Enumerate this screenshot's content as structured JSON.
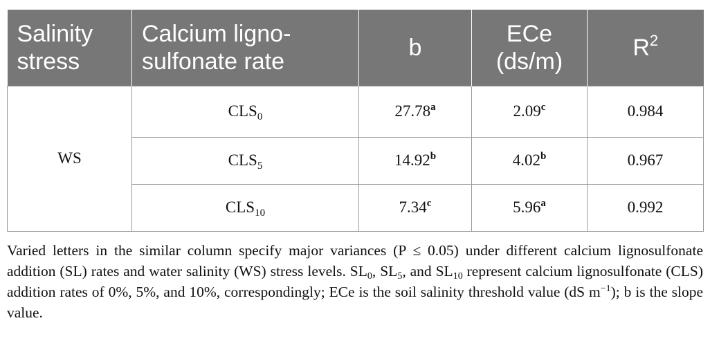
{
  "table": {
    "headers": {
      "col1": [
        "Salinity",
        "stress"
      ],
      "col2": [
        "Calcium ligno-",
        "sulfonate rate"
      ],
      "col3": "b",
      "col4": [
        "ECe",
        "(ds/m)"
      ],
      "col5_base": "R",
      "col5_sup": "2"
    },
    "group_label": "WS",
    "rows": [
      {
        "rate_base": "CLS",
        "rate_sub": "0",
        "b_value": "27.78",
        "b_letter": "a",
        "ece_value": "2.09",
        "ece_letter": "c",
        "r2": "0.984"
      },
      {
        "rate_base": "CLS",
        "rate_sub": "5",
        "b_value": "14.92",
        "b_letter": "b",
        "ece_value": "4.02",
        "ece_letter": "b",
        "r2": "0.967"
      },
      {
        "rate_base": "CLS",
        "rate_sub": "10",
        "b_value": "7.34",
        "b_letter": "c",
        "ece_value": "5.96",
        "ece_letter": "a",
        "r2": "0.992"
      }
    ],
    "colors": {
      "header_bg": "#777777",
      "header_text": "#ffffff",
      "border": "#999999"
    }
  },
  "footnote": {
    "part1": "Varied letters in the similar column specify major variances (P ≤ 0.05) under different calcium lignosulfonate addition (SL) rates and water salinity (WS) stress levels. SL",
    "sub1": "0",
    "part2": ", SL",
    "sub2": "5",
    "part3": ", and SL",
    "sub3": "10",
    "part4": " represent calcium lignosulfonate (CLS) addition rates of 0%, 5%, and 10%, correspondingly; ECe is the soil salinity threshold value (dS m",
    "sup1": "−1",
    "part5": "); b is the slope value."
  }
}
